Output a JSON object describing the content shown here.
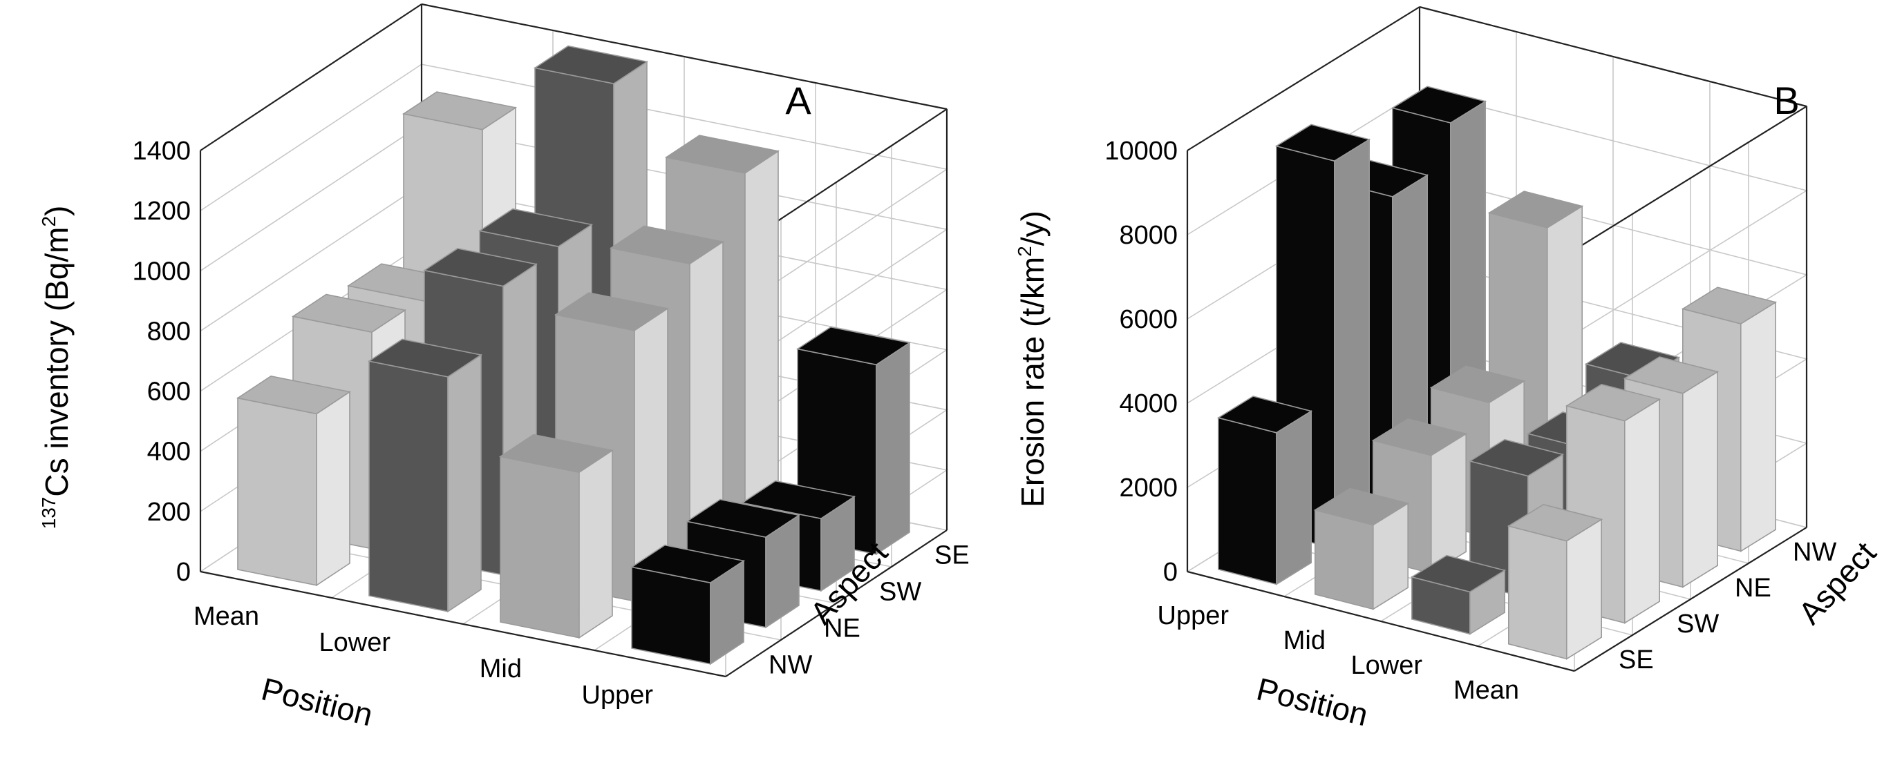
{
  "chart_data": [
    {
      "panel": "A",
      "type": "bar",
      "subtype": "3d-bar",
      "ylabel_prefix": "137",
      "ylabel_main": "Cs inventory (Bq/m",
      "ylabel_sup": "2",
      "ylabel_suffix": ")",
      "xlabel": "Position",
      "zlabel": "Aspect",
      "position_categories": [
        "Mean",
        "Lower",
        "Mid",
        "Upper"
      ],
      "aspect_categories": [
        "NW",
        "NE",
        "SW",
        "SE"
      ],
      "yticks": [
        "0",
        "200",
        "400",
        "600",
        "800",
        "1000",
        "1200",
        "1400"
      ],
      "ylim": [
        0,
        1400
      ],
      "grid": true,
      "colors": {
        "Mean": "#c2c2c2",
        "Lower": "#555555",
        "Mid": "#a7a7a7",
        "Upper": "#080808"
      },
      "series": [
        {
          "name": "NW",
          "values": [
            570,
            780,
            550,
            270
          ]
        },
        {
          "name": "NE",
          "values": [
            720,
            960,
            900,
            300
          ]
        },
        {
          "name": "SW",
          "values": [
            700,
            970,
            1000,
            240
          ]
        },
        {
          "name": "SE",
          "values": [
            1150,
            1390,
            1180,
            630
          ]
        }
      ]
    },
    {
      "panel": "B",
      "type": "bar",
      "subtype": "3d-bar",
      "ylabel_main": "Erosion rate (t/km",
      "ylabel_sup": "2",
      "ylabel_suffix": "/y)",
      "xlabel": "Position",
      "zlabel": "Aspect",
      "position_categories": [
        "Upper",
        "Mid",
        "Lower",
        "Mean"
      ],
      "aspect_categories": [
        "SE",
        "SW",
        "NE",
        "NW"
      ],
      "yticks": [
        "0",
        "2000",
        "4000",
        "6000",
        "8000",
        "10000"
      ],
      "ylim": [
        0,
        10000
      ],
      "grid": true,
      "colors": {
        "Upper": "#080808",
        "Mid": "#a7a7a7",
        "Lower": "#555555",
        "Mean": "#c2c2c2"
      },
      "series": [
        {
          "name": "SE",
          "values": [
            3600,
            2000,
            1000,
            2800
          ]
        },
        {
          "name": "SW",
          "values": [
            9200,
            2800,
            2900,
            4800
          ]
        },
        {
          "name": "NE",
          "values": [
            7500,
            3200,
            2700,
            4600
          ]
        },
        {
          "name": "NW",
          "values": [
            8400,
            6500,
            3500,
            5400
          ]
        }
      ]
    }
  ]
}
